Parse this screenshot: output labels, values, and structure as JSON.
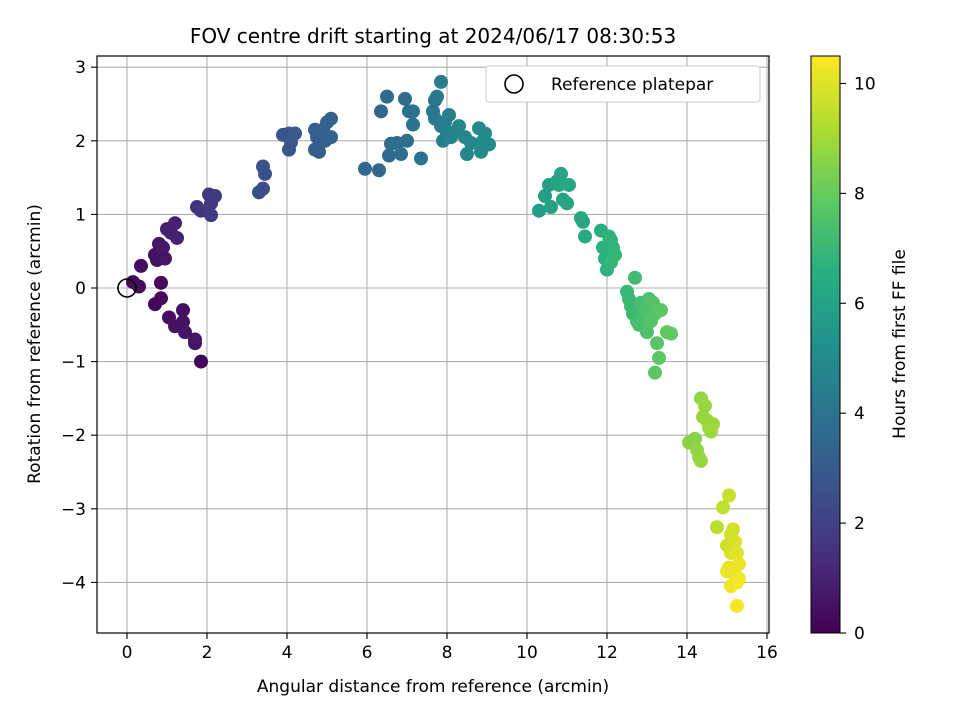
{
  "chart_data": {
    "type": "scatter",
    "title": "FOV centre drift starting at 2024/06/17 08:30:53",
    "xlabel": "Angular distance from reference (arcmin)",
    "ylabel": "Rotation from reference (arcmin)",
    "xlim": [
      -0.75,
      16.0
    ],
    "ylim": [
      -4.7,
      3.15
    ],
    "xticks": [
      0,
      2,
      4,
      6,
      8,
      10,
      12,
      14,
      16
    ],
    "yticks": [
      -4,
      -3,
      -2,
      -1,
      0,
      1,
      2,
      3
    ],
    "grid": true,
    "legend_position": "top-right",
    "legend": [
      {
        "label": "Reference platepar",
        "marker": "open-circle"
      }
    ],
    "reference_point": {
      "x": 0,
      "y": 0
    },
    "colorbar": {
      "label": "Hours from first FF file",
      "range": [
        0,
        10.5
      ],
      "ticks": [
        0,
        2,
        4,
        6,
        8,
        10
      ],
      "colormap": "viridis"
    },
    "points": [
      [
        0.15,
        0.08,
        0.2
      ],
      [
        0.3,
        0.02,
        0.3
      ],
      [
        0.35,
        0.3,
        0.4
      ],
      [
        0.7,
        0.45,
        0.5
      ],
      [
        0.8,
        0.6,
        0.6
      ],
      [
        0.75,
        0.38,
        0.5
      ],
      [
        0.9,
        0.55,
        0.7
      ],
      [
        0.95,
        0.4,
        0.6
      ],
      [
        1.0,
        0.8,
        0.8
      ],
      [
        1.1,
        0.75,
        0.9
      ],
      [
        1.2,
        0.88,
        1.0
      ],
      [
        1.25,
        0.68,
        1.0
      ],
      [
        0.85,
        0.07,
        0.3
      ],
      [
        0.85,
        -0.14,
        0.3
      ],
      [
        0.7,
        -0.22,
        0.2
      ],
      [
        1.05,
        -0.4,
        0.4
      ],
      [
        1.2,
        -0.52,
        0.5
      ],
      [
        1.4,
        -0.3,
        0.4
      ],
      [
        1.4,
        -0.46,
        0.5
      ],
      [
        1.45,
        -0.6,
        0.6
      ],
      [
        1.7,
        -0.7,
        0.6
      ],
      [
        1.7,
        -0.75,
        0.6
      ],
      [
        1.85,
        -1.0,
        0.1
      ],
      [
        1.75,
        1.1,
        1.5
      ],
      [
        1.85,
        1.05,
        1.6
      ],
      [
        2.05,
        1.27,
        1.7
      ],
      [
        2.1,
        1.15,
        1.7
      ],
      [
        2.2,
        1.25,
        1.8
      ],
      [
        2.1,
        0.99,
        1.8
      ],
      [
        3.3,
        1.3,
        2.5
      ],
      [
        3.4,
        1.35,
        2.5
      ],
      [
        3.45,
        1.55,
        2.6
      ],
      [
        3.4,
        1.65,
        2.6
      ],
      [
        3.9,
        2.08,
        2.7
      ],
      [
        4.05,
        2.1,
        2.8
      ],
      [
        4.1,
        1.98,
        2.9
      ],
      [
        4.05,
        1.88,
        2.8
      ],
      [
        4.2,
        2.1,
        2.9
      ],
      [
        4.7,
        1.88,
        3.0
      ],
      [
        4.75,
        2.05,
        3.1
      ],
      [
        4.8,
        1.85,
        3.1
      ],
      [
        4.9,
        2.15,
        3.2
      ],
      [
        4.95,
        2.0,
        3.2
      ],
      [
        5.0,
        2.25,
        3.3
      ],
      [
        5.1,
        2.3,
        3.3
      ],
      [
        5.1,
        2.05,
        3.3
      ],
      [
        4.7,
        2.15,
        3.2
      ],
      [
        5.95,
        1.62,
        3.5
      ],
      [
        6.3,
        1.6,
        3.5
      ],
      [
        6.35,
        2.4,
        3.5
      ],
      [
        6.5,
        2.6,
        3.6
      ],
      [
        6.55,
        1.8,
        3.6
      ],
      [
        6.6,
        1.96,
        3.6
      ],
      [
        6.75,
        1.97,
        3.7
      ],
      [
        6.85,
        1.82,
        3.7
      ],
      [
        6.95,
        2.57,
        3.7
      ],
      [
        7.0,
        2.0,
        3.8
      ],
      [
        7.05,
        2.4,
        3.8
      ],
      [
        7.15,
        2.4,
        3.9
      ],
      [
        7.15,
        2.22,
        3.9
      ],
      [
        7.35,
        1.76,
        4.0
      ],
      [
        7.65,
        2.4,
        4.1
      ],
      [
        7.7,
        2.55,
        4.1
      ],
      [
        7.75,
        2.6,
        4.2
      ],
      [
        7.7,
        2.3,
        4.2
      ],
      [
        7.85,
        2.8,
        4.3
      ],
      [
        7.85,
        2.2,
        4.3
      ],
      [
        7.9,
        2.0,
        4.4
      ],
      [
        7.95,
        2.25,
        4.4
      ],
      [
        8.0,
        2.1,
        4.5
      ],
      [
        8.05,
        2.35,
        4.5
      ],
      [
        8.1,
        2.05,
        4.6
      ],
      [
        8.2,
        2.12,
        4.6
      ],
      [
        8.3,
        2.2,
        4.7
      ],
      [
        8.45,
        2.05,
        4.8
      ],
      [
        8.5,
        1.82,
        4.8
      ],
      [
        8.6,
        1.97,
        4.9
      ],
      [
        8.8,
        2.17,
        4.9
      ],
      [
        8.85,
        1.85,
        5.0
      ],
      [
        8.9,
        2.0,
        5.0
      ],
      [
        8.95,
        2.1,
        5.0
      ],
      [
        9.05,
        1.95,
        5.0
      ],
      [
        10.3,
        1.05,
        5.8
      ],
      [
        10.45,
        1.25,
        5.9
      ],
      [
        10.55,
        1.4,
        5.9
      ],
      [
        10.6,
        1.1,
        6.0
      ],
      [
        10.75,
        1.45,
        6.0
      ],
      [
        10.8,
        1.4,
        6.1
      ],
      [
        10.85,
        1.55,
        6.1
      ],
      [
        10.9,
        1.2,
        6.1
      ],
      [
        11.0,
        1.15,
        6.2
      ],
      [
        11.05,
        1.4,
        6.2
      ],
      [
        11.35,
        0.95,
        6.3
      ],
      [
        11.4,
        0.9,
        6.3
      ],
      [
        11.45,
        0.7,
        6.4
      ],
      [
        11.85,
        0.78,
        6.5
      ],
      [
        11.9,
        0.55,
        6.6
      ],
      [
        11.95,
        0.4,
        6.6
      ],
      [
        12.0,
        0.25,
        6.7
      ],
      [
        12.05,
        0.7,
        6.7
      ],
      [
        12.1,
        0.65,
        6.8
      ],
      [
        12.15,
        0.55,
        6.8
      ],
      [
        12.1,
        0.35,
        6.9
      ],
      [
        12.2,
        0.45,
        6.9
      ],
      [
        12.5,
        -0.05,
        7.0
      ],
      [
        12.55,
        -0.15,
        7.0
      ],
      [
        12.6,
        -0.25,
        7.1
      ],
      [
        12.65,
        -0.35,
        7.1
      ],
      [
        12.7,
        0.14,
        7.2
      ],
      [
        12.75,
        -0.45,
        7.2
      ],
      [
        12.8,
        -0.5,
        7.3
      ],
      [
        12.85,
        -0.2,
        7.3
      ],
      [
        12.9,
        -0.4,
        7.4
      ],
      [
        12.95,
        -0.3,
        7.4
      ],
      [
        13.0,
        -0.6,
        7.5
      ],
      [
        13.05,
        -0.15,
        7.5
      ],
      [
        13.1,
        -0.45,
        7.6
      ],
      [
        13.15,
        -0.2,
        7.6
      ],
      [
        13.2,
        -0.35,
        7.7
      ],
      [
        13.25,
        -0.75,
        7.7
      ],
      [
        13.3,
        -0.95,
        7.8
      ],
      [
        13.2,
        -1.15,
        7.8
      ],
      [
        13.35,
        -0.3,
        7.8
      ],
      [
        13.5,
        -0.6,
        7.9
      ],
      [
        13.6,
        -0.62,
        7.9
      ],
      [
        14.05,
        -2.1,
        8.6
      ],
      [
        14.2,
        -2.05,
        8.6
      ],
      [
        14.25,
        -2.2,
        8.7
      ],
      [
        14.3,
        -2.3,
        8.7
      ],
      [
        14.35,
        -1.5,
        8.7
      ],
      [
        14.4,
        -1.75,
        8.8
      ],
      [
        14.45,
        -1.6,
        8.8
      ],
      [
        14.5,
        -1.8,
        8.8
      ],
      [
        14.55,
        -1.9,
        8.9
      ],
      [
        14.6,
        -1.95,
        8.9
      ],
      [
        14.65,
        -1.85,
        8.9
      ],
      [
        14.35,
        -2.35,
        8.8
      ],
      [
        14.75,
        -3.25,
        9.4
      ],
      [
        14.9,
        -2.98,
        9.5
      ],
      [
        15.05,
        -2.82,
        9.6
      ],
      [
        15.0,
        -3.5,
        9.7
      ],
      [
        15.1,
        -3.35,
        9.8
      ],
      [
        15.15,
        -3.28,
        9.8
      ],
      [
        15.1,
        -3.6,
        9.9
      ],
      [
        15.2,
        -3.45,
        9.9
      ],
      [
        15.25,
        -3.6,
        10.0
      ],
      [
        15.05,
        -3.8,
        10.1
      ],
      [
        15.15,
        -3.85,
        10.1
      ],
      [
        15.2,
        -3.9,
        10.2
      ],
      [
        15.3,
        -3.75,
        10.2
      ],
      [
        15.25,
        -4.0,
        10.3
      ],
      [
        15.1,
        -4.05,
        10.3
      ],
      [
        15.3,
        -3.95,
        10.4
      ],
      [
        15.25,
        -4.32,
        10.4
      ],
      [
        15.0,
        -3.85,
        10.2
      ]
    ]
  }
}
